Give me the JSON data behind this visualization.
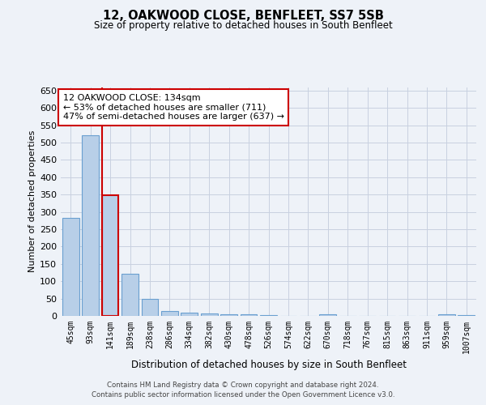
{
  "title1": "12, OAKWOOD CLOSE, BENFLEET, SS7 5SB",
  "title2": "Size of property relative to detached houses in South Benfleet",
  "xlabel": "Distribution of detached houses by size in South Benfleet",
  "ylabel": "Number of detached properties",
  "categories": [
    "45sqm",
    "93sqm",
    "141sqm",
    "189sqm",
    "238sqm",
    "286sqm",
    "334sqm",
    "382sqm",
    "430sqm",
    "478sqm",
    "526sqm",
    "574sqm",
    "622sqm",
    "670sqm",
    "718sqm",
    "767sqm",
    "815sqm",
    "863sqm",
    "911sqm",
    "959sqm",
    "1007sqm"
  ],
  "values": [
    283,
    522,
    347,
    122,
    48,
    15,
    10,
    8,
    5,
    4,
    2,
    1,
    0,
    5,
    1,
    0,
    0,
    0,
    0,
    4,
    2
  ],
  "bar_color": "#b8cfe8",
  "bar_edge_color": "#6a9fd0",
  "highlight_bar_index": 2,
  "highlight_edge_color": "#cc0000",
  "annotation_text": "12 OAKWOOD CLOSE: 134sqm\n← 53% of detached houses are smaller (711)\n47% of semi-detached houses are larger (637) →",
  "annotation_box_edge_color": "#cc0000",
  "red_line_x": 1.57,
  "ylim": [
    0,
    660
  ],
  "yticks": [
    0,
    50,
    100,
    150,
    200,
    250,
    300,
    350,
    400,
    450,
    500,
    550,
    600,
    650
  ],
  "footer1": "Contains HM Land Registry data © Crown copyright and database right 2024.",
  "footer2": "Contains public sector information licensed under the Open Government Licence v3.0.",
  "bg_color": "#eef2f8",
  "grid_color": "#c8d0e0"
}
